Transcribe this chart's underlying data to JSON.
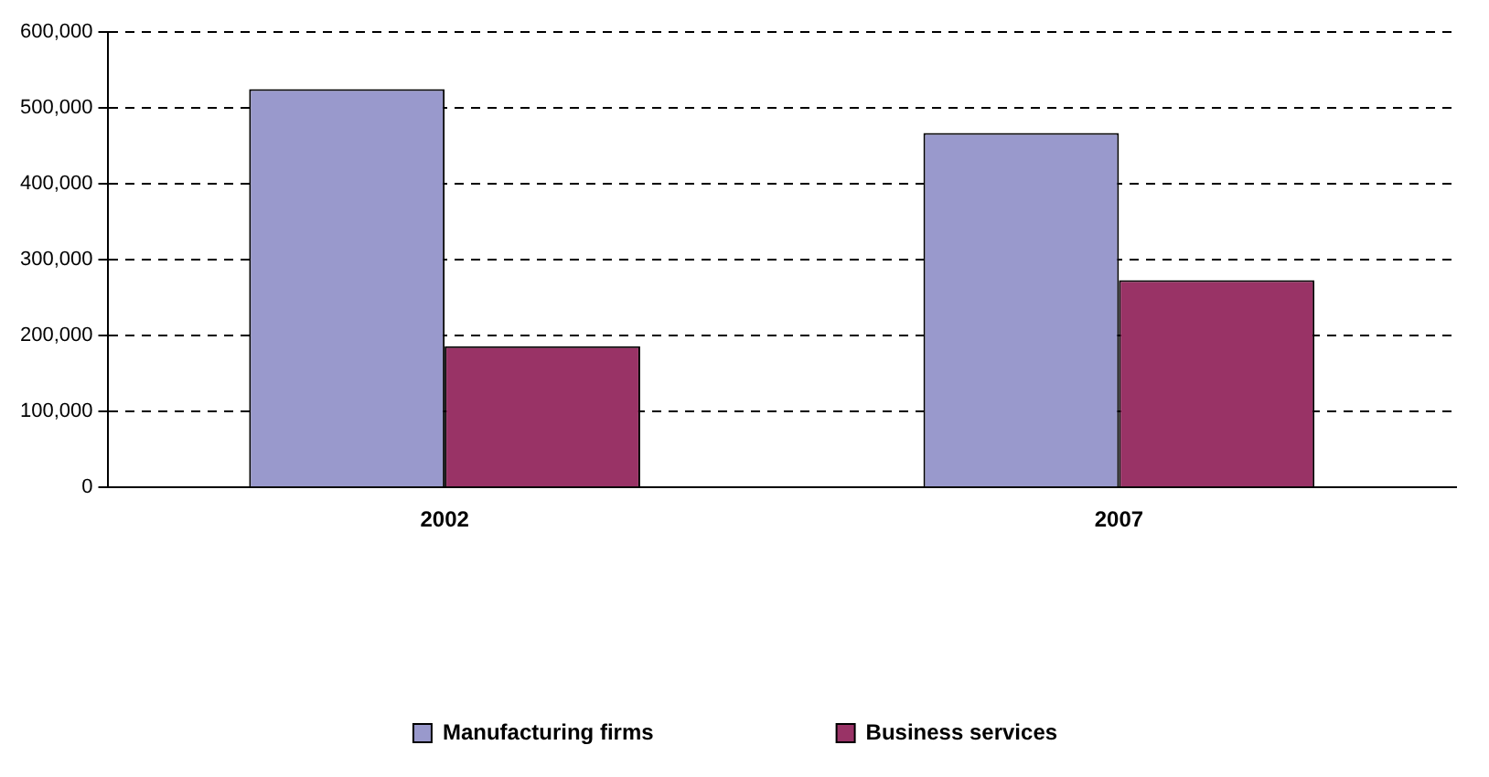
{
  "chart_data": {
    "type": "bar",
    "categories": [
      "2002",
      "2007"
    ],
    "series": [
      {
        "name": "Manufacturing firms",
        "color": "#9999cc",
        "values": [
          525000,
          467000
        ]
      },
      {
        "name": "Business services",
        "color": "#993366",
        "values": [
          186000,
          273000
        ]
      }
    ],
    "ylim": [
      0,
      600000
    ],
    "yticks": [
      {
        "value": 0,
        "label": "0"
      },
      {
        "value": 100000,
        "label": "100,000"
      },
      {
        "value": 200000,
        "label": "200,000"
      },
      {
        "value": 300000,
        "label": "300,000"
      },
      {
        "value": 400000,
        "label": "400,000"
      },
      {
        "value": 500000,
        "label": "500,000"
      },
      {
        "value": 600000,
        "label": "600,000"
      }
    ],
    "grid": "y",
    "legend": "bottom"
  }
}
